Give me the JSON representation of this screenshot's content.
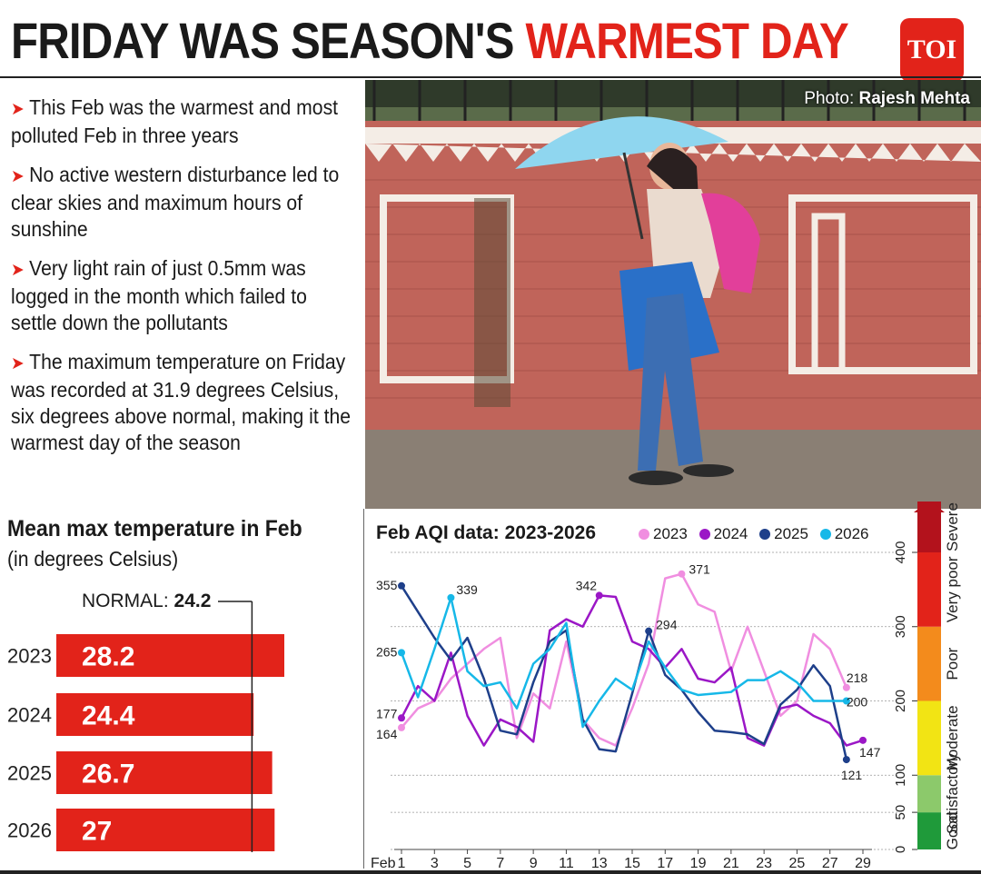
{
  "headline": {
    "part1": "FRIDAY WAS SEASON'S ",
    "part2": "WARMEST DAY"
  },
  "logo": "TOI",
  "bullets": [
    "This Feb was the warmest and most polluted Feb in three years",
    "No active western disturbance led to clear skies and maximum hours of sunshine",
    "Very light rain of just 0.5mm was logged in the month which failed to settle down the pollutants",
    "The maximum temperature on Friday was recorded at 31.9 degrees Celsius, six degrees above normal, making it the warmest day of the season"
  ],
  "photo": {
    "credit_prefix": "Photo: ",
    "credit_name": "Rajesh Mehta"
  },
  "colors": {
    "accent": "#e2231a",
    "s2023": "#f08ee0",
    "s2024": "#9b17c6",
    "s2025": "#1e3f8a",
    "s2026": "#16b8e8"
  },
  "chart_data": [
    {
      "type": "bar",
      "title": "Mean max temperature in Feb",
      "subtitle": "(in degrees Celsius)",
      "categories": [
        "2023",
        "2024",
        "2025",
        "2026"
      ],
      "values": [
        28.2,
        24.4,
        26.7,
        27
      ],
      "value_labels": [
        "28.2",
        "24.4",
        "26.7",
        "27"
      ],
      "reference": {
        "label": "NORMAL: ",
        "value": 24.2,
        "value_label": "24.2"
      },
      "orientation": "horizontal"
    },
    {
      "type": "line",
      "title": "Feb AQI data: 2023-2026",
      "x_ticks": [
        1,
        3,
        5,
        7,
        9,
        11,
        13,
        15,
        17,
        19,
        21,
        23,
        25,
        27,
        29
      ],
      "x_prefix": "Feb",
      "xlim": [
        1,
        29
      ],
      "ylim": [
        0,
        400
      ],
      "y_ticks": [
        0,
        50,
        100,
        200,
        300,
        400
      ],
      "series": [
        {
          "name": "2023",
          "x": [
            1,
            2,
            3,
            4,
            5,
            6,
            7,
            8,
            9,
            10,
            11,
            12,
            13,
            14,
            15,
            16,
            17,
            18,
            19,
            20,
            21,
            22,
            23,
            24,
            25,
            26,
            27,
            28
          ],
          "values": [
            164,
            190,
            200,
            230,
            250,
            270,
            285,
            150,
            210,
            190,
            280,
            175,
            150,
            140,
            190,
            250,
            365,
            371,
            330,
            320,
            240,
            300,
            240,
            180,
            200,
            290,
            270,
            218
          ]
        },
        {
          "name": "2024",
          "x": [
            1,
            2,
            3,
            4,
            5,
            6,
            7,
            8,
            9,
            10,
            11,
            12,
            13,
            14,
            15,
            16,
            17,
            18,
            19,
            20,
            21,
            22,
            23,
            24,
            25,
            26,
            27,
            28,
            29
          ],
          "values": [
            177,
            220,
            200,
            265,
            180,
            140,
            175,
            165,
            145,
            295,
            310,
            300,
            342,
            340,
            280,
            270,
            245,
            270,
            230,
            225,
            245,
            150,
            140,
            190,
            195,
            180,
            170,
            140,
            147
          ]
        },
        {
          "name": "2025",
          "x": [
            1,
            2,
            3,
            4,
            5,
            6,
            7,
            8,
            9,
            10,
            11,
            12,
            13,
            14,
            15,
            16,
            17,
            18,
            19,
            20,
            21,
            22,
            23,
            24,
            25,
            26,
            27,
            28
          ],
          "values": [
            355,
            320,
            285,
            255,
            285,
            230,
            160,
            155,
            225,
            280,
            295,
            175,
            135,
            132,
            210,
            294,
            235,
            215,
            185,
            160,
            158,
            155,
            142,
            195,
            215,
            248,
            220,
            121
          ]
        },
        {
          "name": "2026",
          "x": [
            1,
            2,
            3,
            4,
            5,
            6,
            7,
            8,
            9,
            10,
            11,
            12,
            13,
            14,
            15,
            16,
            17,
            18,
            19,
            20,
            21,
            22,
            23,
            24,
            25,
            26,
            27,
            28
          ],
          "values": [
            265,
            205,
            270,
            339,
            240,
            220,
            225,
            190,
            250,
            270,
            305,
            165,
            200,
            230,
            215,
            280,
            245,
            215,
            208,
            210,
            212,
            228,
            228,
            240,
            225,
            200,
            200,
            200
          ]
        }
      ],
      "point_labels": [
        {
          "series": "2025",
          "x": 1,
          "text": "355"
        },
        {
          "series": "2026",
          "x": 1,
          "text": "265"
        },
        {
          "series": "2024",
          "x": 1,
          "text": "177"
        },
        {
          "series": "2023",
          "x": 1,
          "text": "164"
        },
        {
          "series": "2026",
          "x": 4,
          "text": "339"
        },
        {
          "series": "2024",
          "x": 13,
          "text": "342"
        },
        {
          "series": "2025",
          "x": 16,
          "text": "294"
        },
        {
          "series": "2023",
          "x": 18,
          "text": "371"
        },
        {
          "series": "2023",
          "x": 28,
          "text": "218"
        },
        {
          "series": "2026",
          "x": 28,
          "text": "200"
        },
        {
          "series": "2024",
          "x": 29,
          "text": "147"
        },
        {
          "series": "2025",
          "x": 28,
          "text": "121"
        }
      ],
      "aqi_bands": [
        {
          "label": "Good",
          "from": 0,
          "to": 50,
          "color": "#1f9a3a"
        },
        {
          "label": "Satisfactory",
          "from": 50,
          "to": 100,
          "color": "#8cc96b"
        },
        {
          "label": "Moderate",
          "from": 100,
          "to": 200,
          "color": "#f2e414"
        },
        {
          "label": "Poor",
          "from": 200,
          "to": 300,
          "color": "#f38b1c"
        },
        {
          "label": "Very poor",
          "from": 300,
          "to": 400,
          "color": "#e2231a"
        },
        {
          "label": "Severe",
          "from": 400,
          "to": 500,
          "color": "#b3121c"
        }
      ],
      "grid": true,
      "legend": "top"
    }
  ]
}
